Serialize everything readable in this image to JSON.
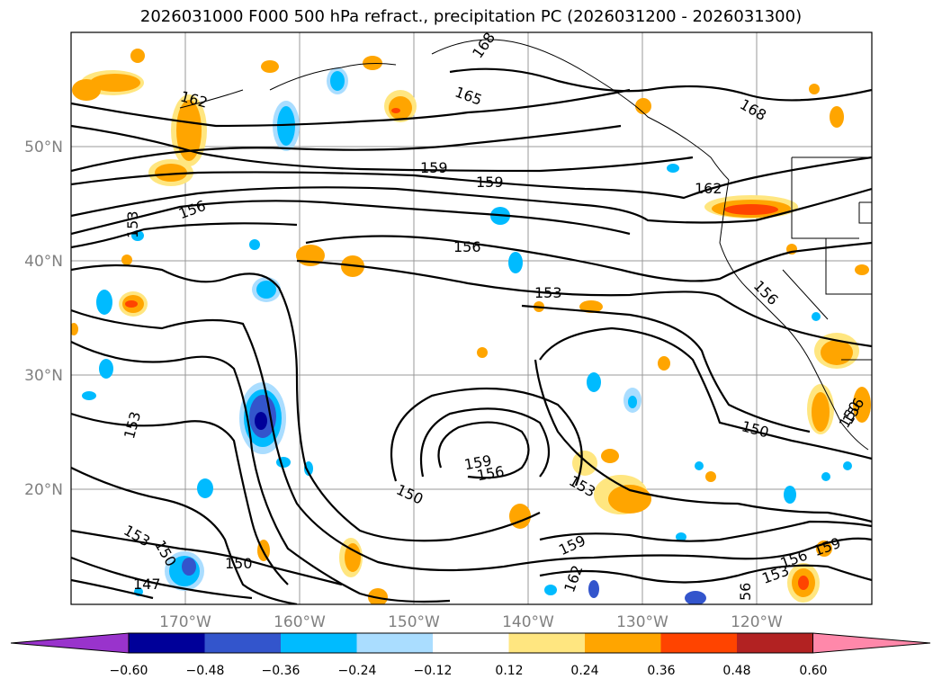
{
  "title": "2026031000 F000 500 hPa refract., precipitation PC (2026031200 - 2026031300)",
  "lat_labels": [
    "50°N",
    "40°N",
    "30°N",
    "20°N"
  ],
  "lon_labels": [
    "170°W",
    "160°W",
    "150°W",
    "140°W",
    "130°W",
    "120°W"
  ],
  "colorbar": {
    "ticks": [
      "−0.60",
      "−0.48",
      "−0.36",
      "−0.24",
      "−0.12",
      "0.12",
      "0.24",
      "0.36",
      "0.48",
      "0.60"
    ],
    "colors": [
      "#9933cc",
      "#000099",
      "#3355cc",
      "#00bbff",
      "#aaddff",
      "#ffffff",
      "#ffe680",
      "#ffa500",
      "#ff4400",
      "#b22222",
      "#ff88aa"
    ]
  },
  "contour_labels": [
    "168",
    "165",
    "162",
    "159",
    "159",
    "156",
    "153",
    "162",
    "156",
    "156",
    "153",
    "150",
    "153",
    "159",
    "156",
    "150",
    "153",
    "150",
    "153",
    "150",
    "147",
    "150",
    "159",
    "162",
    "56",
    "156",
    "153",
    "159",
    "156",
    "168"
  ],
  "colors": {
    "contour": "#000000",
    "grid": "#999999",
    "coast": "#000000"
  }
}
